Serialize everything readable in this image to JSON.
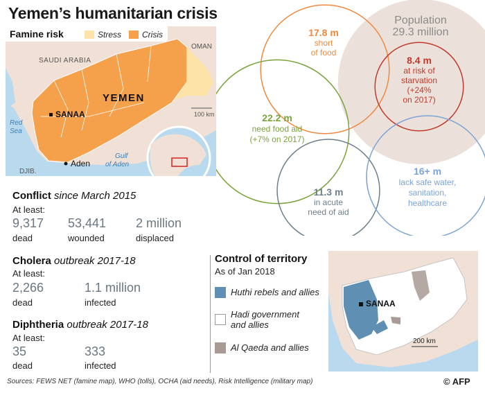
{
  "title": "Yemen’s humanitarian crisis",
  "famine_map": {
    "heading": "Famine risk",
    "legend": [
      {
        "label": "Stress",
        "color": "#fde3a7"
      },
      {
        "label": "Crisis",
        "color": "#f5a04a"
      }
    ],
    "labels": {
      "saudi": "SAUDI ARABIA",
      "oman": "OMAN",
      "yemen": "YEMEN",
      "sanaa": "SANAA",
      "aden": "Aden",
      "red_sea": "Red\nSea",
      "gulf": "Gulf\nof Aden",
      "djib": "DJIB.",
      "scale": "100 km"
    },
    "colors": {
      "land": "#f0e0d6",
      "sea": "#b9d9ee",
      "crisis": "#f5a04a",
      "stress": "#fde3a7"
    }
  },
  "conflict": {
    "heading": "Conflict",
    "heading_sub": "since March 2015",
    "at_least": "At least:",
    "stats": [
      {
        "value": "9,317",
        "label": "dead"
      },
      {
        "value": "53,441",
        "label": "wounded"
      },
      {
        "value": "2 million",
        "label": "displaced"
      }
    ]
  },
  "cholera": {
    "heading": "Cholera",
    "heading_sub": "outbreak 2017-18",
    "at_least": "At least:",
    "stats": [
      {
        "value": "2,266",
        "label": "dead"
      },
      {
        "value": "1.1 million",
        "label": "infected"
      }
    ]
  },
  "diphtheria": {
    "heading": "Diphtheria",
    "heading_sub": "outbreak 2017-18",
    "at_least": "At least:",
    "stats": [
      {
        "value": "35",
        "label": "dead"
      },
      {
        "value": "333",
        "label": "infected"
      }
    ]
  },
  "control": {
    "heading": "Control of territory",
    "subheading": "As of Jan 2018",
    "legend": [
      {
        "label": "Huthi rebels and allies",
        "color": "#5f8fb3"
      },
      {
        "label": "Hadi government\nand allies",
        "color": "#ffffff"
      },
      {
        "label": "Al Qaeda and allies",
        "color": "#a89a94"
      }
    ],
    "map_labels": {
      "sanaa": "SANAA",
      "scale": "200 km"
    }
  },
  "sources": "Sources: FEWS NET (famine map), WHO (tolls), OCHA (aid needs), Risk Intelligence (military map)",
  "credit": "© AFP",
  "chart_data": {
    "type": "bubble-venn",
    "title": "Yemen’s humanitarian crisis",
    "unit": "m",
    "circles": [
      {
        "id": "population",
        "value": 29.3,
        "lines": [
          "Population",
          "29.3 million"
        ],
        "color": "#ece1da",
        "style": "fill"
      },
      {
        "id": "short_of_food",
        "value": 17.8,
        "lines": [
          "17.8 m",
          "short",
          "of food"
        ],
        "color": "#f0883e",
        "style": "outline"
      },
      {
        "id": "starvation",
        "value": 8.4,
        "lines": [
          "8.4 m",
          "at risk of",
          "starvation",
          "(+24%",
          "on 2017)"
        ],
        "color": "#c0392b",
        "style": "outline"
      },
      {
        "id": "food_aid",
        "value": 22.2,
        "lines": [
          "22.2 m",
          "need food aid",
          "(+7% on 2017)"
        ],
        "color": "#7aa33c",
        "style": "outline"
      },
      {
        "id": "acute_aid",
        "value": 11.3,
        "lines": [
          "11.3 m",
          "in acute",
          "need of aid"
        ],
        "color": "#6d7f8a",
        "style": "outline"
      },
      {
        "id": "water",
        "value": 16,
        "lines": [
          "16+ m",
          "lack safe water,",
          "sanitation,",
          "healthcare"
        ],
        "color": "#7aa3d6",
        "style": "outline"
      }
    ]
  }
}
